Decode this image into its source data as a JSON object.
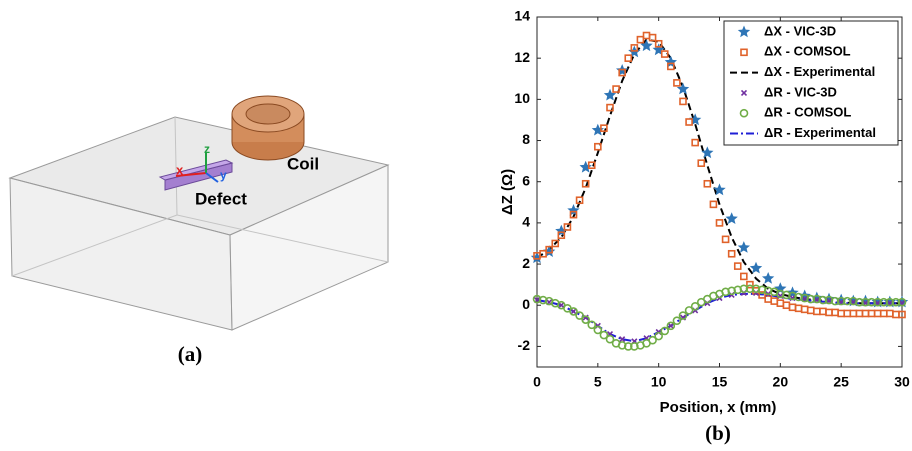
{
  "diagram": {
    "labels": {
      "coil": "Coil",
      "defect": "Defect",
      "x": "x",
      "y": "y",
      "z": "z"
    },
    "caption": "(a)"
  },
  "chart_data": {
    "type": "line",
    "panel_label": "(b)",
    "xlabel": "Position, x (mm)",
    "ylabel": "ΔZ (Ω)",
    "xlim": [
      0,
      30
    ],
    "xticks": [
      0,
      5,
      10,
      15,
      20,
      25,
      30
    ],
    "ylim": [
      -3,
      14
    ],
    "yticks": [
      -2,
      0,
      2,
      4,
      6,
      8,
      10,
      12,
      14
    ],
    "grid": false,
    "legend": "upper right",
    "series": [
      {
        "name": "ΔX - VIC-3D",
        "color": "#2e75b6",
        "marker": "star",
        "x": [
          0,
          1,
          2,
          3,
          4,
          5,
          6,
          7,
          8,
          9,
          10,
          11,
          12,
          13,
          14,
          15,
          16,
          17,
          18,
          19,
          20,
          21,
          22,
          23,
          24,
          25,
          26,
          27,
          28,
          29,
          30
        ],
        "values": [
          2.3,
          2.6,
          3.6,
          4.6,
          6.7,
          8.5,
          10.2,
          11.4,
          12.3,
          12.6,
          12.4,
          11.8,
          10.5,
          9.0,
          7.4,
          5.6,
          4.2,
          2.8,
          1.8,
          1.3,
          0.8,
          0.6,
          0.45,
          0.35,
          0.3,
          0.25,
          0.2,
          0.2,
          0.15,
          0.15,
          0.15
        ]
      },
      {
        "name": "ΔX - COMSOL",
        "color": "#e0622a",
        "marker": "square",
        "x": [
          0,
          0.5,
          1,
          1.5,
          2,
          2.5,
          3,
          3.5,
          4,
          4.5,
          5,
          5.5,
          6,
          6.5,
          7,
          7.5,
          8,
          8.5,
          9,
          9.5,
          10,
          10.5,
          11,
          11.5,
          12,
          12.5,
          13,
          13.5,
          14,
          14.5,
          15,
          15.5,
          16,
          16.5,
          17,
          17.5,
          18,
          18.5,
          19,
          19.5,
          20,
          20.5,
          21,
          21.5,
          22,
          22.5,
          23,
          23.5,
          24,
          24.5,
          25,
          25.5,
          26,
          26.5,
          27,
          27.5,
          28,
          28.5,
          29,
          29.5,
          30
        ],
        "values": [
          2.4,
          2.5,
          2.7,
          3.0,
          3.4,
          3.8,
          4.4,
          5.1,
          5.9,
          6.8,
          7.7,
          8.6,
          9.6,
          10.5,
          11.3,
          12.0,
          12.5,
          12.9,
          13.1,
          13.0,
          12.7,
          12.2,
          11.6,
          10.8,
          9.9,
          8.9,
          7.9,
          6.9,
          5.9,
          4.9,
          4.0,
          3.2,
          2.5,
          1.9,
          1.4,
          1.0,
          0.7,
          0.5,
          0.3,
          0.2,
          0.1,
          0.0,
          -0.1,
          -0.15,
          -0.2,
          -0.25,
          -0.3,
          -0.3,
          -0.35,
          -0.35,
          -0.4,
          -0.4,
          -0.4,
          -0.4,
          -0.4,
          -0.4,
          -0.4,
          -0.4,
          -0.4,
          -0.45,
          -0.45
        ]
      },
      {
        "name": "ΔX - Experimental",
        "color": "#000000",
        "dash": "7 4",
        "x": [
          0,
          1,
          2,
          3,
          4,
          5,
          6,
          7,
          8,
          9,
          10,
          11,
          12,
          13,
          14,
          15,
          16,
          17,
          18,
          19,
          20,
          21,
          22,
          23,
          24,
          25,
          26,
          27,
          28,
          29,
          30
        ],
        "values": [
          2.3,
          2.7,
          3.3,
          4.3,
          5.7,
          7.4,
          9.2,
          10.9,
          12.2,
          12.9,
          12.8,
          12.0,
          10.6,
          8.8,
          6.8,
          4.9,
          3.3,
          2.1,
          1.3,
          0.8,
          0.55,
          0.4,
          0.3,
          0.25,
          0.2,
          0.15,
          0.1,
          0.1,
          0.1,
          0.1,
          0.1
        ]
      },
      {
        "name": "ΔR - VIC-3D",
        "color": "#7030a0",
        "marker": "x",
        "x": [
          0,
          1,
          2,
          3,
          4,
          5,
          6,
          7,
          8,
          9,
          10,
          11,
          12,
          13,
          14,
          15,
          16,
          17,
          18,
          19,
          20,
          21,
          22,
          23,
          24,
          25,
          26,
          27,
          28,
          29,
          30
        ],
        "values": [
          0.25,
          0.15,
          0.0,
          -0.3,
          -0.6,
          -1.0,
          -1.4,
          -1.65,
          -1.75,
          -1.6,
          -1.3,
          -1.0,
          -0.6,
          -0.25,
          0.1,
          0.35,
          0.5,
          0.6,
          0.6,
          0.55,
          0.45,
          0.35,
          0.3,
          0.25,
          0.2,
          0.15,
          0.15,
          0.1,
          0.1,
          0.1,
          0.1
        ]
      },
      {
        "name": "ΔR - COMSOL",
        "color": "#70ad47",
        "marker": "circle",
        "x": [
          0,
          0.5,
          1,
          1.5,
          2,
          2.5,
          3,
          3.5,
          4,
          4.5,
          5,
          5.5,
          6,
          6.5,
          7,
          7.5,
          8,
          8.5,
          9,
          9.5,
          10,
          10.5,
          11,
          11.5,
          12,
          12.5,
          13,
          13.5,
          14,
          14.5,
          15,
          15.5,
          16,
          16.5,
          17,
          17.5,
          18,
          18.5,
          19,
          19.5,
          20,
          20.5,
          21,
          21.5,
          22,
          22.5,
          23,
          23.5,
          24,
          24.5,
          25,
          25.5,
          26,
          26.5,
          27,
          27.5,
          28,
          28.5,
          29,
          29.5,
          30
        ],
        "values": [
          0.3,
          0.25,
          0.2,
          0.1,
          0.0,
          -0.15,
          -0.3,
          -0.5,
          -0.7,
          -0.95,
          -1.2,
          -1.45,
          -1.65,
          -1.85,
          -1.95,
          -2.0,
          -2.0,
          -1.95,
          -1.85,
          -1.7,
          -1.5,
          -1.25,
          -1.0,
          -0.75,
          -0.5,
          -0.25,
          -0.05,
          0.15,
          0.3,
          0.45,
          0.55,
          0.65,
          0.7,
          0.75,
          0.8,
          0.8,
          0.8,
          0.75,
          0.7,
          0.65,
          0.55,
          0.5,
          0.45,
          0.4,
          0.35,
          0.3,
          0.3,
          0.25,
          0.25,
          0.2,
          0.2,
          0.2,
          0.2,
          0.15,
          0.15,
          0.15,
          0.15,
          0.15,
          0.15,
          0.15,
          0.15
        ]
      },
      {
        "name": "ΔR - Experimental",
        "color": "#1f1fd6",
        "dash": "8 3 2 3",
        "x": [
          0,
          1,
          2,
          3,
          4,
          5,
          6,
          7,
          8,
          9,
          10,
          11,
          12,
          13,
          14,
          15,
          16,
          17,
          18,
          19,
          20,
          21,
          22,
          23,
          24,
          25,
          26,
          27,
          28,
          29,
          30
        ],
        "values": [
          0.25,
          0.15,
          0.0,
          -0.3,
          -0.6,
          -1.0,
          -1.4,
          -1.65,
          -1.75,
          -1.6,
          -1.3,
          -1.0,
          -0.6,
          -0.25,
          0.1,
          0.35,
          0.5,
          0.55,
          0.55,
          0.5,
          0.4,
          0.3,
          0.25,
          0.2,
          0.15,
          0.1,
          0.1,
          0.1,
          0.1,
          0.1,
          0.1
        ]
      }
    ]
  }
}
